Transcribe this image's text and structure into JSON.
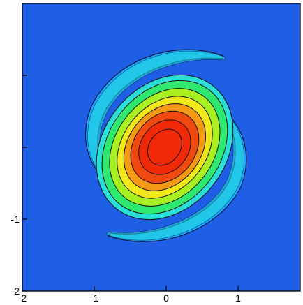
{
  "chart_data": {
    "type": "heatmap",
    "title": "",
    "xlabel": "",
    "ylabel": "",
    "xlim": [
      -2,
      2
    ],
    "ylim": [
      -2,
      2
    ],
    "x_ticks": [
      {
        "value": -2,
        "label": "-2"
      },
      {
        "value": -1,
        "label": "-1"
      },
      {
        "value": 0,
        "label": "0"
      },
      {
        "value": 1,
        "label": "1"
      }
    ],
    "y_ticks": [
      {
        "value": -2,
        "label": "-2"
      },
      {
        "value": -1,
        "label": "-1"
      },
      {
        "value": 0,
        "label": ""
      },
      {
        "value": 1,
        "label": ""
      }
    ],
    "colormap": [
      "#1f5fe6",
      "#19a7ff",
      "#28e0d8",
      "#2fe870",
      "#a8f020",
      "#f0e818",
      "#f59a14",
      "#f04a10",
      "#f02a08"
    ],
    "background_color": "#1f5fe6",
    "grid": false
  }
}
